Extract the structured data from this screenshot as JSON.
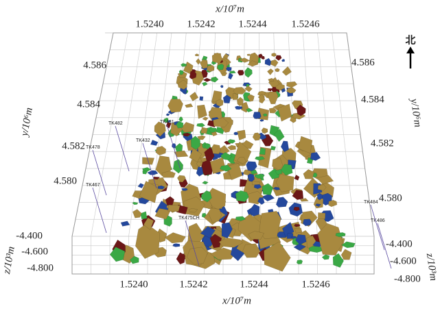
{
  "axes": {
    "x_top": {
      "label": "x/10⁷m",
      "ticks": [
        "1.5240",
        "1.5242",
        "1.5244",
        "1.5246"
      ]
    },
    "x_bottom": {
      "label": "x/10⁷m",
      "ticks": [
        "1.5240",
        "1.5242",
        "1.5244",
        "1.5246"
      ]
    },
    "y_left": {
      "label": "y/10⁶m",
      "ticks": [
        "4.586",
        "4.584",
        "4.582",
        "4.580"
      ]
    },
    "y_right": {
      "label": "y/10⁶m",
      "ticks": [
        "4.586",
        "4.584",
        "4.582",
        "4.580"
      ]
    },
    "z_left": {
      "label": "z/10³m",
      "ticks": [
        "-4.400",
        "-4.600",
        "-4.800"
      ]
    },
    "z_right": {
      "label": "z/10³m",
      "ticks": [
        "-4.400",
        "-4.600",
        "-4.800"
      ]
    }
  },
  "north": "北",
  "wells": [
    "TK478",
    "TK482",
    "TK467",
    "TK431",
    "TK432",
    "TK486",
    "TK484",
    "TK475CH"
  ]
}
